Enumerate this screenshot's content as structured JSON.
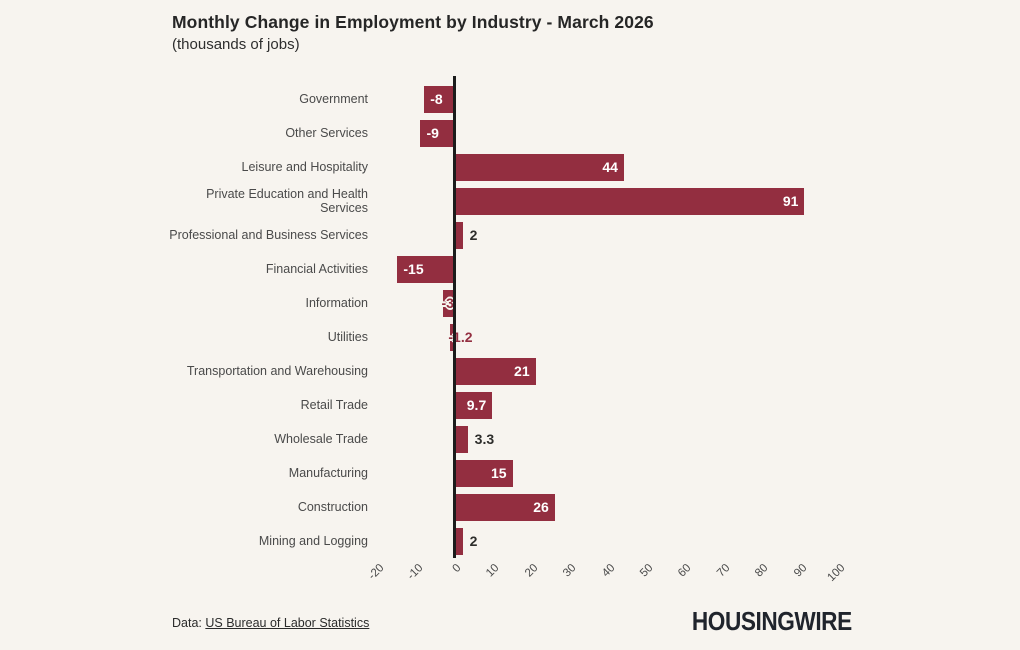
{
  "header": {
    "title": "Monthly Change in Employment by Industry - March 2026",
    "subtitle": "(thousands of jobs)"
  },
  "footer": {
    "source_prefix": "Data: ",
    "source_link": "US Bureau of Labor Statistics",
    "brand": "HOUSINGWIRE"
  },
  "colors": {
    "bar": "#932e40",
    "background": "#f7f4ef",
    "axis": "#1c1c1c"
  },
  "chart_data": {
    "type": "bar",
    "orientation": "horizontal",
    "title": "Monthly Change in Employment by Industry - March 2026",
    "subtitle": "(thousands of jobs)",
    "categories": [
      "Government",
      "Other Services",
      "Leisure and Hospitality",
      "Private Education and Health Services",
      "Professional and Business Services",
      "Financial Activities",
      "Information",
      "Utilities",
      "Transportation and Warehousing",
      "Retail Trade",
      "Wholesale Trade",
      "Manufacturing",
      "Construction",
      "Mining and Logging"
    ],
    "values": [
      -8,
      -9,
      44,
      91,
      2,
      -15,
      -3,
      -1.2,
      21,
      9.7,
      3.3,
      15,
      26,
      2
    ],
    "xlim": [
      -20,
      100
    ],
    "xticks": [
      -20,
      -10,
      0,
      10,
      20,
      30,
      40,
      50,
      60,
      70,
      80,
      90,
      100
    ],
    "grid": false,
    "legend": null,
    "value_labels_shown": true
  }
}
